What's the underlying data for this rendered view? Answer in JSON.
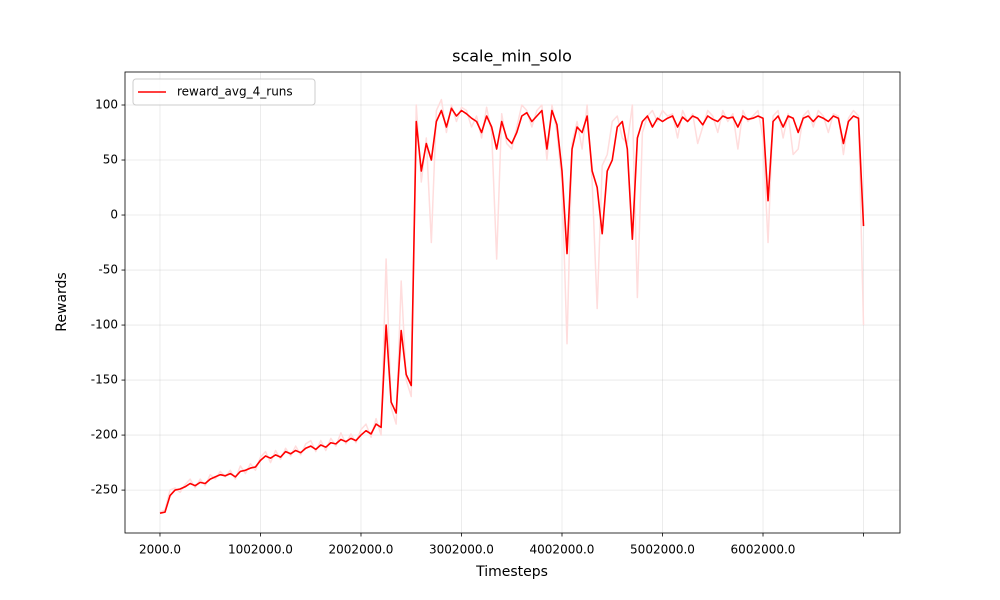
{
  "chart_data": {
    "type": "line",
    "title": "scale_min_solo",
    "x_label": "Timesteps",
    "y_label": "Rewards",
    "x": [
      2000,
      52000,
      102000,
      152000,
      202000,
      252000,
      302000,
      352000,
      402000,
      452000,
      502000,
      552000,
      602000,
      652000,
      702000,
      752000,
      802000,
      852000,
      902000,
      952000,
      1002000,
      1052000,
      1102000,
      1152000,
      1202000,
      1252000,
      1302000,
      1352000,
      1402000,
      1452000,
      1502000,
      1552000,
      1602000,
      1652000,
      1702000,
      1752000,
      1802000,
      1852000,
      1902000,
      1952000,
      2002000,
      2052000,
      2102000,
      2152000,
      2202000,
      2252000,
      2302000,
      2352000,
      2402000,
      2452000,
      2502000,
      2552000,
      2602000,
      2652000,
      2702000,
      2752000,
      2802000,
      2852000,
      2902000,
      2952000,
      3002000,
      3052000,
      3102000,
      3152000,
      3202000,
      3252000,
      3302000,
      3352000,
      3402000,
      3452000,
      3502000,
      3552000,
      3602000,
      3652000,
      3702000,
      3752000,
      3802000,
      3852000,
      3902000,
      3952000,
      4002000,
      4052000,
      4102000,
      4152000,
      4202000,
      4252000,
      4302000,
      4352000,
      4402000,
      4452000,
      4502000,
      4552000,
      4602000,
      4652000,
      4702000,
      4752000,
      4802000,
      4852000,
      4902000,
      4952000,
      5002000,
      5052000,
      5102000,
      5152000,
      5202000,
      5252000,
      5302000,
      5352000,
      5402000,
      5452000,
      5502000,
      5552000,
      5602000,
      5652000,
      5702000,
      5752000,
      5802000,
      5852000,
      5902000,
      5952000,
      6002000,
      6052000,
      6102000,
      6152000,
      6202000,
      6252000,
      6302000,
      6352000,
      6402000,
      6452000,
      6502000,
      6552000,
      6602000,
      6652000,
      6702000,
      6752000,
      6802000,
      6852000,
      6902000,
      6952000,
      7002000
    ],
    "series": [
      {
        "color": "#ffdddd",
        "values": [
          -270,
          -268,
          -250,
          -248,
          -252,
          -245,
          -240,
          -248,
          -240,
          -246,
          -236,
          -240,
          -233,
          -238,
          -232,
          -240,
          -228,
          -235,
          -226,
          -232,
          -220,
          -215,
          -225,
          -214,
          -222,
          -212,
          -219,
          -210,
          -218,
          -208,
          -205,
          -215,
          -205,
          -214,
          -203,
          -210,
          -198,
          -208,
          -199,
          -207,
          -195,
          -190,
          -202,
          -185,
          -200,
          -40,
          -175,
          -190,
          -60,
          -150,
          -165,
          100,
          30,
          70,
          -25,
          95,
          105,
          75,
          100,
          85,
          98,
          95,
          80,
          90,
          70,
          98,
          75,
          -40,
          92,
          65,
          60,
          80,
          100,
          95,
          80,
          95,
          100,
          50,
          100,
          75,
          30,
          -117,
          65,
          85,
          60,
          100,
          30,
          -85,
          45,
          55,
          85,
          90,
          70,
          65,
          100,
          -75,
          75,
          90,
          95,
          85,
          95,
          90,
          92,
          70,
          95,
          85,
          92,
          65,
          80,
          95,
          90,
          75,
          95,
          85,
          92,
          60,
          95,
          85,
          90,
          95,
          70,
          -25,
          90,
          95,
          70,
          92,
          55,
          60,
          90,
          95,
          80,
          95,
          90,
          75,
          92,
          90,
          55,
          88,
          95,
          90,
          -100
        ]
      },
      {
        "name": "reward_avg_4_runs",
        "color": "#ff0000",
        "values": [
          -271,
          -270,
          -255,
          -250,
          -249,
          -247,
          -244,
          -246,
          -243,
          -244,
          -240,
          -238,
          -236,
          -237,
          -235,
          -238,
          -233,
          -232,
          -230,
          -229,
          -223,
          -219,
          -221,
          -218,
          -220,
          -215,
          -217,
          -214,
          -216,
          -212,
          -210,
          -213,
          -209,
          -211,
          -207,
          -208,
          -204,
          -206,
          -203,
          -205,
          -200,
          -196,
          -199,
          -190,
          -193,
          -100,
          -170,
          -180,
          -105,
          -145,
          -155,
          85,
          40,
          65,
          50,
          85,
          95,
          80,
          97,
          90,
          95,
          92,
          88,
          85,
          75,
          90,
          80,
          60,
          85,
          70,
          65,
          75,
          90,
          93,
          85,
          90,
          95,
          60,
          95,
          82,
          40,
          -35,
          60,
          80,
          75,
          90,
          40,
          25,
          -17,
          40,
          50,
          80,
          85,
          60,
          -22,
          70,
          85,
          90,
          80,
          88,
          85,
          88,
          90,
          80,
          89,
          85,
          90,
          88,
          82,
          90,
          87,
          85,
          90,
          88,
          89,
          80,
          90,
          87,
          88,
          90,
          88,
          13,
          85,
          90,
          80,
          90,
          88,
          75,
          88,
          90,
          85,
          90,
          88,
          85,
          90,
          88,
          65,
          85,
          90,
          88,
          -10
        ]
      }
    ],
    "xlim": [
      -346000,
      7365000
    ],
    "ylim": [
      -289,
      130
    ],
    "xticks": [
      {
        "value": 2000,
        "label": "2000.0"
      },
      {
        "value": 1002000,
        "label": "1002000.0"
      },
      {
        "value": 2002000,
        "label": "2002000.0"
      },
      {
        "value": 3002000,
        "label": "3002000.0"
      },
      {
        "value": 4002000,
        "label": "4002000.0"
      },
      {
        "value": 5002000,
        "label": "5002000.0"
      },
      {
        "value": 6002000,
        "label": "6002000.0"
      },
      {
        "value": 7002000,
        "label": null
      }
    ],
    "yticks": [
      -250,
      -200,
      -150,
      -100,
      -50,
      0,
      50,
      100
    ],
    "grid": true,
    "legend": "upper left"
  }
}
